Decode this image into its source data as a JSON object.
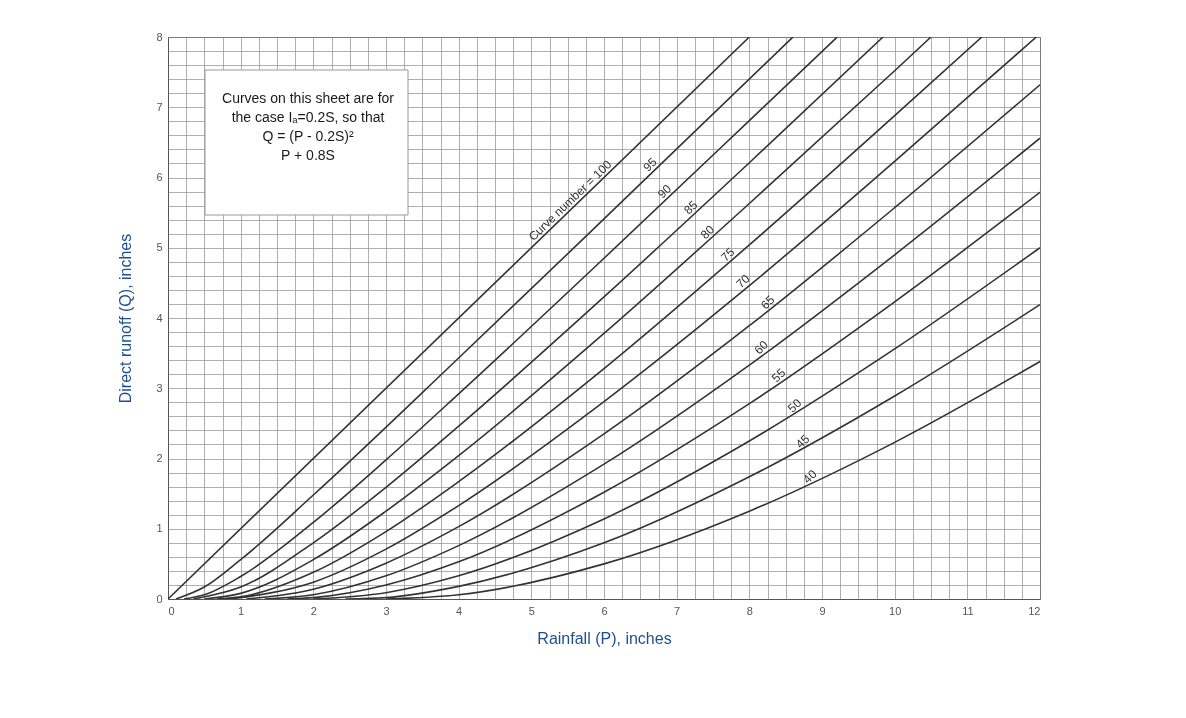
{
  "chart_data": {
    "type": "line",
    "xlabel": "Rainfall (P), inches",
    "ylabel": "Direct runoff (Q), inches",
    "xlim": [
      0,
      12
    ],
    "ylim": [
      0,
      8
    ],
    "xticks": [
      0,
      {
        "value": 0.25,
        "label": null
      },
      {
        "value": 0.5,
        "label": null
      },
      {
        "value": 0.75,
        "label": null
      },
      1,
      {
        "value": 1.25,
        "label": null
      },
      {
        "value": 1.5,
        "label": null
      },
      {
        "value": 1.75,
        "label": null
      },
      2,
      {
        "value": 2.25,
        "label": null
      },
      {
        "value": 2.5,
        "label": null
      },
      {
        "value": 2.75,
        "label": null
      },
      3,
      {
        "value": 3.25,
        "label": null
      },
      {
        "value": 3.5,
        "label": null
      },
      {
        "value": 3.75,
        "label": null
      },
      4,
      {
        "value": 4.25,
        "label": null
      },
      {
        "value": 4.5,
        "label": null
      },
      {
        "value": 4.75,
        "label": null
      },
      5,
      {
        "value": 5.25,
        "label": null
      },
      {
        "value": 5.5,
        "label": null
      },
      {
        "value": 5.75,
        "label": null
      },
      6,
      {
        "value": 6.25,
        "label": null
      },
      {
        "value": 6.5,
        "label": null
      },
      {
        "value": 6.75,
        "label": null
      },
      7,
      {
        "value": 7.25,
        "label": null
      },
      {
        "value": 7.5,
        "label": null
      },
      {
        "value": 7.75,
        "label": null
      },
      8,
      {
        "value": 8.25,
        "label": null
      },
      {
        "value": 8.5,
        "label": null
      },
      {
        "value": 8.75,
        "label": null
      },
      9,
      {
        "value": 9.25,
        "label": null
      },
      {
        "value": 9.5,
        "label": null
      },
      {
        "value": 9.75,
        "label": null
      },
      10,
      {
        "value": 10.25,
        "label": null
      },
      {
        "value": 10.5,
        "label": null
      },
      {
        "value": 10.75,
        "label": null
      },
      11,
      {
        "value": 11.25,
        "label": null
      },
      {
        "value": 11.5,
        "label": null
      },
      {
        "value": 11.75,
        "label": null
      },
      12
    ],
    "yticks": [
      0,
      {
        "value": 0.2,
        "label": null
      },
      {
        "value": 0.4,
        "label": null
      },
      {
        "value": 0.6,
        "label": null
      },
      {
        "value": 0.8,
        "label": null
      },
      1,
      {
        "value": 1.2,
        "label": null
      },
      {
        "value": 1.4,
        "label": null
      },
      {
        "value": 1.6,
        "label": null
      },
      {
        "value": 1.8,
        "label": null
      },
      2,
      {
        "value": 2.2,
        "label": null
      },
      {
        "value": 2.4,
        "label": null
      },
      {
        "value": 2.6,
        "label": null
      },
      {
        "value": 2.8,
        "label": null
      },
      3,
      {
        "value": 3.2,
        "label": null
      },
      {
        "value": 3.4,
        "label": null
      },
      {
        "value": 3.6,
        "label": null
      },
      {
        "value": 3.8,
        "label": null
      },
      4,
      {
        "value": 4.2,
        "label": null
      },
      {
        "value": 4.4,
        "label": null
      },
      {
        "value": 4.6,
        "label": null
      },
      {
        "value": 4.8,
        "label": null
      },
      5,
      {
        "value": 5.2,
        "label": null
      },
      {
        "value": 5.4,
        "label": null
      },
      {
        "value": 5.6,
        "label": null
      },
      {
        "value": 5.8,
        "label": null
      },
      6,
      {
        "value": 6.2,
        "label": null
      },
      {
        "value": 6.4,
        "label": null
      },
      {
        "value": 6.6,
        "label": null
      },
      {
        "value": 6.8,
        "label": null
      },
      7,
      {
        "value": 7.2,
        "label": null
      },
      {
        "value": 7.4,
        "label": null
      },
      {
        "value": 7.6,
        "label": null
      },
      {
        "value": 7.8,
        "label": null
      },
      8
    ],
    "grid": true,
    "marker": "none",
    "line_style": "solid",
    "series": [
      {
        "color": "#333333",
        "x": [
          0,
          8
        ],
        "values": [
          0,
          8
        ]
      },
      {
        "color": "#333333",
        "x": [
          0.11,
          0.5,
          1,
          2,
          4,
          6,
          8.6
        ],
        "values": [
          0,
          0.17,
          0.56,
          1.48,
          3.43,
          5.41,
          8
        ]
      },
      {
        "color": "#333333",
        "x": [
          0.22,
          0.5,
          1,
          2,
          3,
          4,
          6,
          8,
          9.21
        ],
        "values": [
          0,
          0.06,
          0.32,
          1.09,
          1.98,
          2.92,
          4.85,
          6.81,
          8
        ]
      },
      {
        "color": "#333333",
        "x": [
          0.35,
          1,
          2,
          3,
          4,
          6,
          8,
          9.84
        ],
        "values": [
          0,
          0.17,
          0.8,
          1.59,
          2.46,
          4.3,
          6.21,
          8
        ]
      },
      {
        "color": "#333333",
        "x": [
          0.5,
          1,
          2,
          3,
          4,
          6,
          8,
          10,
          10.5
        ],
        "values": [
          0,
          0.08,
          0.56,
          1.25,
          2.04,
          3.78,
          5.63,
          7.52,
          8
        ]
      },
      {
        "color": "#333333",
        "x": [
          0.67,
          1,
          2,
          3,
          4,
          6,
          8,
          10,
          11.2
        ],
        "values": [
          0,
          0.03,
          0.38,
          0.96,
          1.67,
          3.28,
          5.04,
          6.88,
          8
        ]
      },
      {
        "color": "#333333",
        "x": [
          0.86,
          2,
          3,
          4,
          6,
          8,
          10,
          11.95
        ],
        "values": [
          0,
          0.24,
          0.71,
          1.33,
          2.81,
          4.46,
          6.23,
          8
        ]
      },
      {
        "color": "#333333",
        "x": [
          1.08,
          2,
          3,
          4,
          6,
          8,
          10,
          12
        ],
        "values": [
          0,
          0.14,
          0.51,
          1.03,
          2.35,
          3.89,
          5.57,
          7.32
        ]
      },
      {
        "color": "#333333",
        "x": [
          1.33,
          2,
          3,
          4,
          6,
          8,
          10,
          12
        ],
        "values": [
          0,
          0.06,
          0.33,
          0.76,
          1.92,
          3.33,
          4.9,
          6.56
        ]
      },
      {
        "color": "#333333",
        "x": [
          1.64,
          2,
          3,
          4,
          6,
          8,
          10,
          12
        ],
        "values": [
          0,
          0.02,
          0.2,
          0.53,
          1.52,
          2.78,
          4.23,
          5.79
        ]
      },
      {
        "color": "#333333",
        "x": [
          2,
          3,
          4,
          6,
          8,
          10,
          12
        ],
        "values": [
          0,
          0.09,
          0.33,
          1.14,
          2.25,
          3.56,
          5
        ]
      },
      {
        "color": "#333333",
        "x": [
          2.44,
          3,
          4,
          6,
          8,
          10,
          12
        ],
        "values": [
          0,
          0.02,
          0.18,
          0.8,
          1.74,
          2.89,
          4.19
        ]
      },
      {
        "color": "#333333",
        "x": [
          3,
          4,
          6,
          8,
          10,
          12
        ],
        "values": [
          0,
          0.06,
          0.5,
          1.25,
          2.23,
          3.38
        ]
      }
    ],
    "annotations": [
      "Curves on this sheet are for",
      "the case Iₐ=0.2S, so that",
      "Q = (P - 0.2S)²",
      "P + 0.8S",
      {
        "text": "Curve number = 100",
        "x": 5.6,
        "y": 5.6
      },
      {
        "text": "95",
        "x": 6.7,
        "y": 6.11
      },
      {
        "text": "90",
        "x": 6.9,
        "y": 5.73
      },
      {
        "text": "85",
        "x": 7.26,
        "y": 5.5
      },
      {
        "text": "80",
        "x": 7.49,
        "y": 5.15
      },
      {
        "text": "75",
        "x": 7.77,
        "y": 4.83
      },
      {
        "text": "70",
        "x": 7.98,
        "y": 4.45
      },
      {
        "text": "65",
        "x": 8.32,
        "y": 4.15
      },
      {
        "text": "60",
        "x": 8.23,
        "y": 3.51
      },
      {
        "text": "55",
        "x": 8.47,
        "y": 3.11
      },
      {
        "text": "50",
        "x": 8.69,
        "y": 2.68
      },
      {
        "text": "45",
        "x": 8.8,
        "y": 2.17
      },
      {
        "text": "40",
        "x": 8.9,
        "y": 1.67
      }
    ]
  }
}
